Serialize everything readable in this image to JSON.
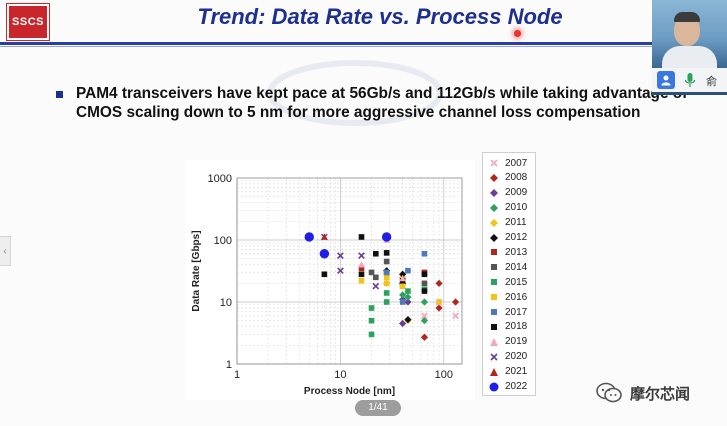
{
  "slide": {
    "logo_text": "SSCS",
    "title": "Trend: Data Rate vs. Process Node",
    "bullet": "PAM4 transceivers have kept pace at 56Gb/s and 112Gb/s while taking advantage of CMOS scaling down to 5 nm for more aggressive channel loss compensation"
  },
  "video": {
    "user_name": "俞"
  },
  "viewer": {
    "page_indicator": "1/41",
    "watermark": "摩尔芯闻"
  },
  "colors": {
    "title": "#1d2f8f",
    "rule": "#2a3ea8"
  },
  "chart_data": {
    "type": "scatter",
    "xlabel": "Process Node [nm]",
    "ylabel": "Data Rate [Gbps]",
    "x_scale": "log",
    "y_scale": "log",
    "xlim": [
      1,
      150
    ],
    "ylim": [
      1,
      1000
    ],
    "x_ticks": [
      "1",
      "10",
      "100"
    ],
    "y_ticks": [
      "1",
      "10",
      "100",
      "1000"
    ],
    "grid": true,
    "legend_position": "right",
    "series": [
      {
        "name": "2007",
        "color": "#f2a6c2",
        "marker": "x",
        "points": [
          [
            90,
            10
          ],
          [
            65,
            6
          ],
          [
            130,
            6
          ]
        ]
      },
      {
        "name": "2008",
        "color": "#b3261e",
        "marker": "diamond",
        "points": [
          [
            90,
            20
          ],
          [
            65,
            2.7
          ],
          [
            130,
            10
          ],
          [
            90,
            8
          ]
        ]
      },
      {
        "name": "2009",
        "color": "#6a3d9a",
        "marker": "diamond",
        "points": [
          [
            40,
            4.5
          ],
          [
            45,
            10
          ],
          [
            40,
            11
          ]
        ]
      },
      {
        "name": "2010",
        "color": "#2ca25f",
        "marker": "diamond",
        "points": [
          [
            65,
            5
          ],
          [
            45,
            12
          ],
          [
            40,
            13
          ],
          [
            65,
            10
          ]
        ]
      },
      {
        "name": "2011",
        "color": "#f0c419",
        "marker": "diamond",
        "points": [
          [
            45,
            5
          ],
          [
            28,
            20
          ],
          [
            40,
            25
          ],
          [
            28,
            28
          ],
          [
            90,
            10
          ]
        ]
      },
      {
        "name": "2012",
        "color": "#111111",
        "marker": "diamond",
        "points": [
          [
            45,
            5.2
          ],
          [
            40,
            20
          ],
          [
            28,
            32
          ],
          [
            40,
            28
          ]
        ]
      },
      {
        "name": "2013",
        "color": "#b3261e",
        "marker": "square",
        "points": [
          [
            28,
            30
          ],
          [
            65,
            30
          ],
          [
            16,
            35
          ],
          [
            40,
            18
          ]
        ]
      },
      {
        "name": "2014",
        "color": "#555555",
        "marker": "square",
        "points": [
          [
            20,
            30
          ],
          [
            28,
            45
          ],
          [
            40,
            20
          ],
          [
            22,
            25
          ],
          [
            65,
            20
          ]
        ]
      },
      {
        "name": "2015",
        "color": "#2ca25f",
        "marker": "square",
        "points": [
          [
            20,
            3
          ],
          [
            20,
            5
          ],
          [
            28,
            10
          ],
          [
            20,
            8
          ],
          [
            45,
            15
          ],
          [
            65,
            16
          ],
          [
            28,
            14
          ]
        ]
      },
      {
        "name": "2016",
        "color": "#f0c419",
        "marker": "square",
        "points": [
          [
            28,
            25
          ],
          [
            40,
            18
          ],
          [
            16,
            22
          ],
          [
            28,
            20
          ]
        ]
      },
      {
        "name": "2017",
        "color": "#4f7ab8",
        "marker": "square",
        "points": [
          [
            65,
            60
          ],
          [
            45,
            32
          ],
          [
            28,
            30
          ],
          [
            40,
            10
          ]
        ]
      },
      {
        "name": "2018",
        "color": "#111111",
        "marker": "square",
        "points": [
          [
            7,
            28
          ],
          [
            16,
            28
          ],
          [
            16,
            112
          ],
          [
            22,
            60
          ],
          [
            28,
            62
          ],
          [
            65,
            28
          ],
          [
            65,
            15
          ],
          [
            40,
            22
          ]
        ]
      },
      {
        "name": "2019",
        "color": "#f2a6c2",
        "marker": "triangle",
        "points": [
          [
            16,
            40
          ],
          [
            28,
            100
          ],
          [
            40,
            24
          ]
        ]
      },
      {
        "name": "2020",
        "color": "#6a3d9a",
        "marker": "x",
        "points": [
          [
            10,
            56
          ],
          [
            10,
            32
          ],
          [
            7,
            112
          ],
          [
            16,
            56
          ],
          [
            22,
            18
          ]
        ]
      },
      {
        "name": "2021",
        "color": "#b3261e",
        "marker": "triangle",
        "points": [
          [
            7,
            112
          ],
          [
            28,
            112
          ]
        ]
      },
      {
        "name": "2022",
        "color": "#1f1fe6",
        "marker": "circle",
        "points": [
          [
            5,
            112
          ],
          [
            7,
            60
          ],
          [
            28,
            112
          ]
        ]
      }
    ]
  }
}
